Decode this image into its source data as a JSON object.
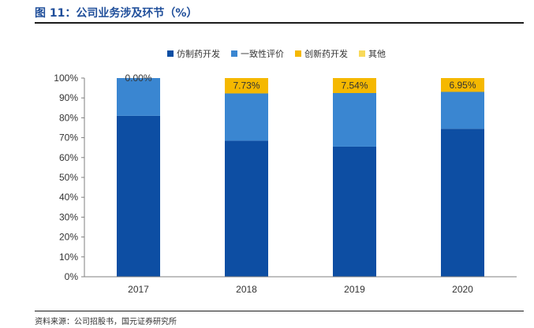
{
  "figure": {
    "title": "图 11：公司业务涉及环节（%）",
    "source": "资料来源：公司招股书，国元证券研究所"
  },
  "chart_data": {
    "type": "bar",
    "stacked": true,
    "categories": [
      "2017",
      "2018",
      "2019",
      "2020"
    ],
    "series": [
      {
        "name": "仿制药开发",
        "color": "#0d4ea3",
        "values": [
          81.0,
          68.5,
          65.5,
          74.5
        ]
      },
      {
        "name": "一致性评价",
        "color": "#3a86d1",
        "values": [
          19.0,
          23.77,
          26.96,
          18.55
        ]
      },
      {
        "name": "创新药开发",
        "color": "#f5b800",
        "values": [
          0.0,
          7.73,
          7.54,
          6.95
        ],
        "labels": [
          "0.00%",
          "7.73%",
          "7.54%",
          "6.95%"
        ]
      },
      {
        "name": "其他",
        "color": "#f8d95a",
        "values": [
          0,
          0,
          0,
          0
        ]
      }
    ],
    "ylim": [
      0,
      100
    ],
    "yticks": [
      "0%",
      "10%",
      "20%",
      "30%",
      "40%",
      "50%",
      "60%",
      "70%",
      "80%",
      "90%",
      "100%"
    ],
    "grid": false,
    "legend_position": "top"
  }
}
